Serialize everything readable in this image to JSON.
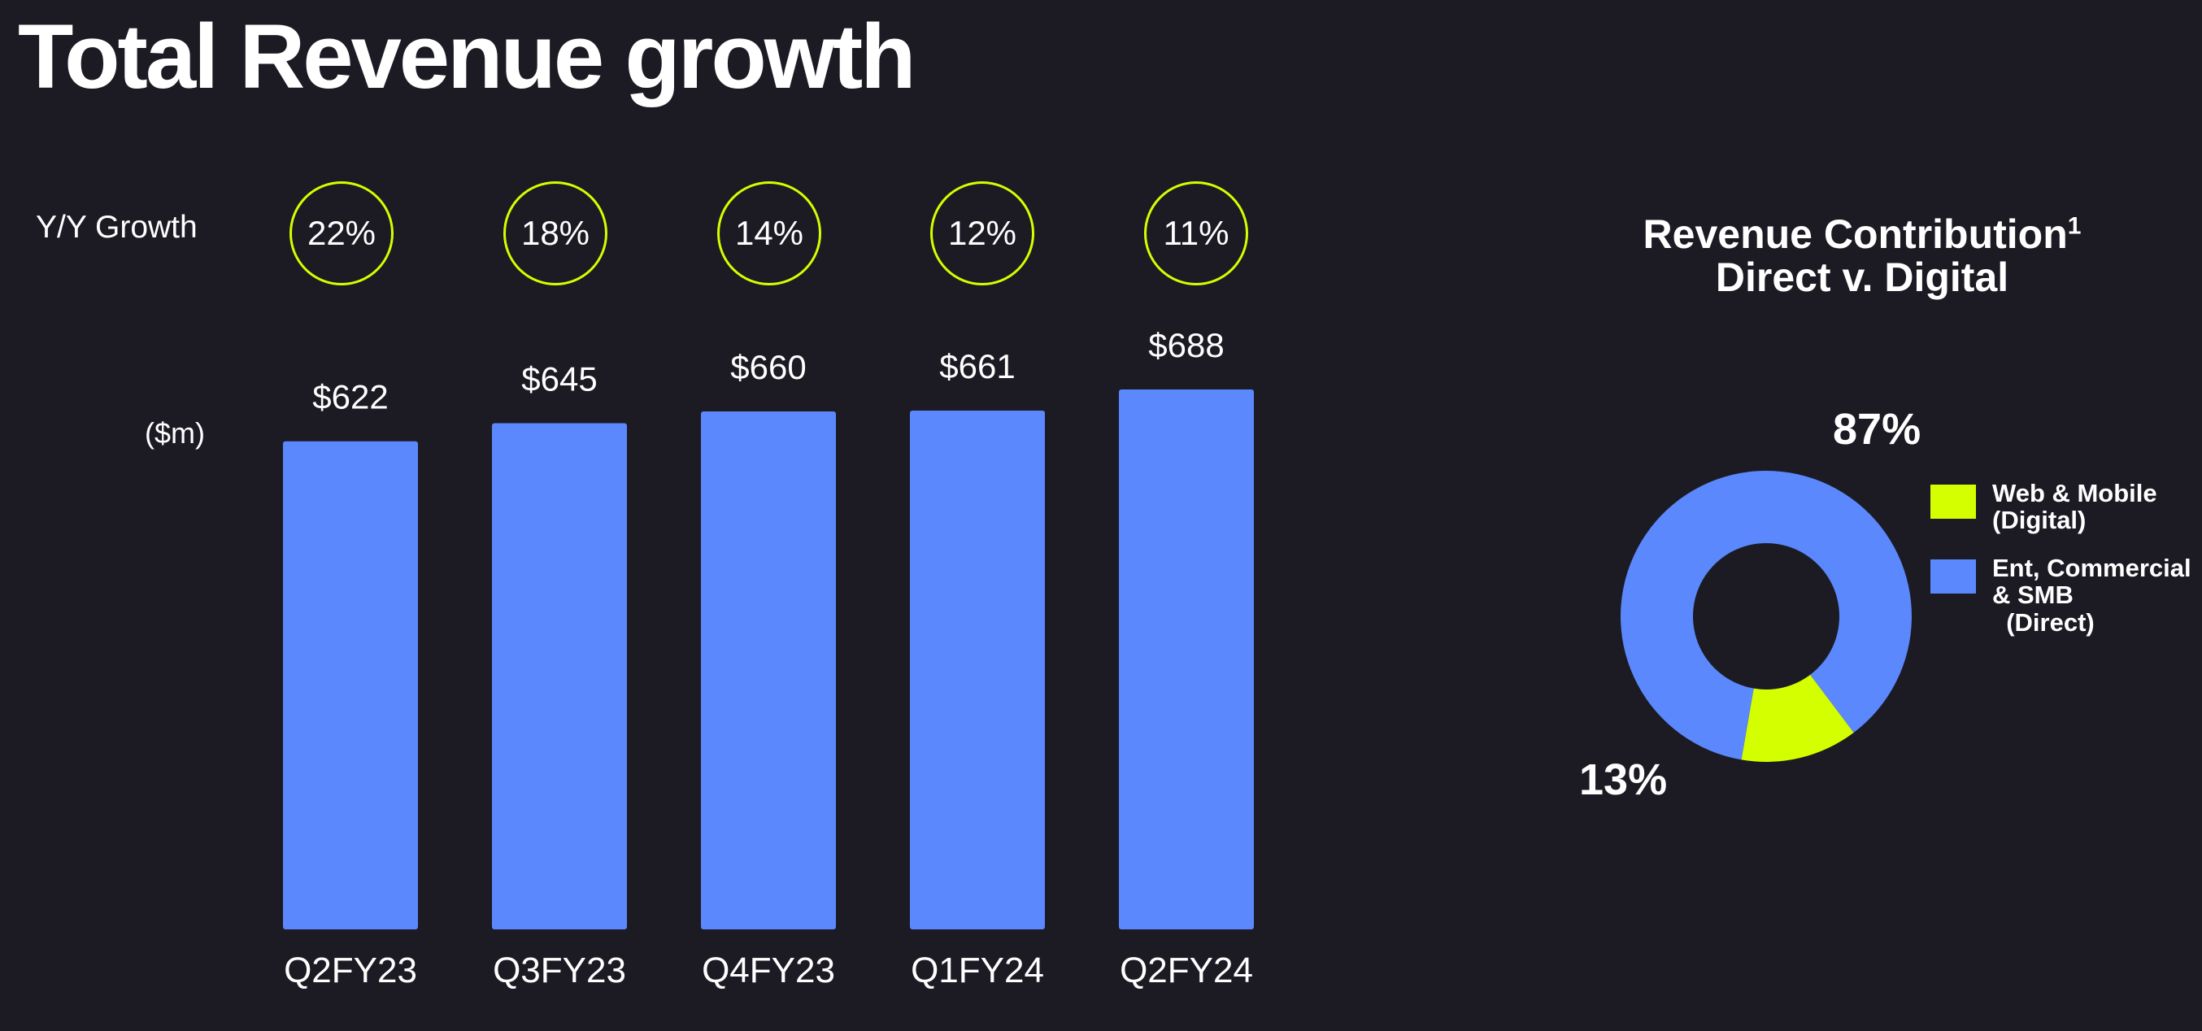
{
  "title": "Total Revenue growth",
  "yy_growth_label": "Y/Y Growth",
  "unit_label": "($m)",
  "colors": {
    "background": "#1c1b24",
    "bar": "#5b88fc",
    "accent": "#d4ff00",
    "text": "#ffffff"
  },
  "chart_data": [
    {
      "type": "bar",
      "title": "Total Revenue growth",
      "categories": [
        "Q2FY23",
        "Q3FY23",
        "Q4FY23",
        "Q1FY24",
        "Q2FY24"
      ],
      "values": [
        622,
        645,
        660,
        661,
        688
      ],
      "value_labels": [
        "$622",
        "$645",
        "$660",
        "$661",
        "$688"
      ],
      "growth_labels": [
        "22%",
        "18%",
        "14%",
        "12%",
        "11%"
      ],
      "ylabel": "($m)",
      "ylim": [
        0,
        688
      ],
      "grid": false
    },
    {
      "type": "pie",
      "title": "Revenue Contribution",
      "title_superscript": "1",
      "subtitle": "Direct v. Digital",
      "slices": [
        {
          "name": "Web & Mobile\n(Digital)",
          "value": 13,
          "label": "13%",
          "color": "#d4ff00"
        },
        {
          "name": "Ent, Commercial\n& SMB\n  (Direct)",
          "value": 87,
          "label": "87%",
          "color": "#5b88fc"
        }
      ],
      "legend_position": "right"
    }
  ]
}
